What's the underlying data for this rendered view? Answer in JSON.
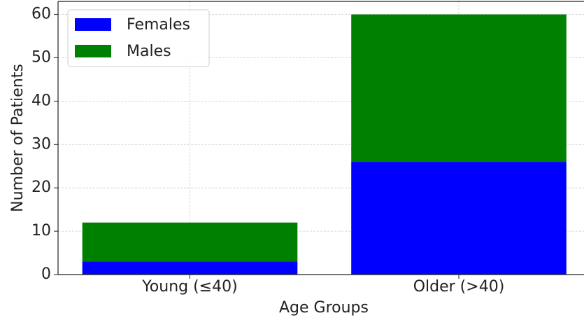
{
  "chart_data": {
    "type": "stacked_bar",
    "categories": [
      "Young (≤40)",
      "Older (>40)"
    ],
    "series": [
      {
        "name": "Females",
        "color": "#0000ff",
        "values": [
          3,
          26
        ]
      },
      {
        "name": "Males",
        "color": "#008000",
        "values": [
          9,
          34
        ]
      }
    ],
    "xlabel": "Age Groups",
    "ylabel": "Number of Patients",
    "ylim": [
      0,
      63
    ],
    "yticks": [
      0,
      10,
      20,
      30,
      40,
      50,
      60
    ],
    "grid": true,
    "legend": "upper left"
  }
}
